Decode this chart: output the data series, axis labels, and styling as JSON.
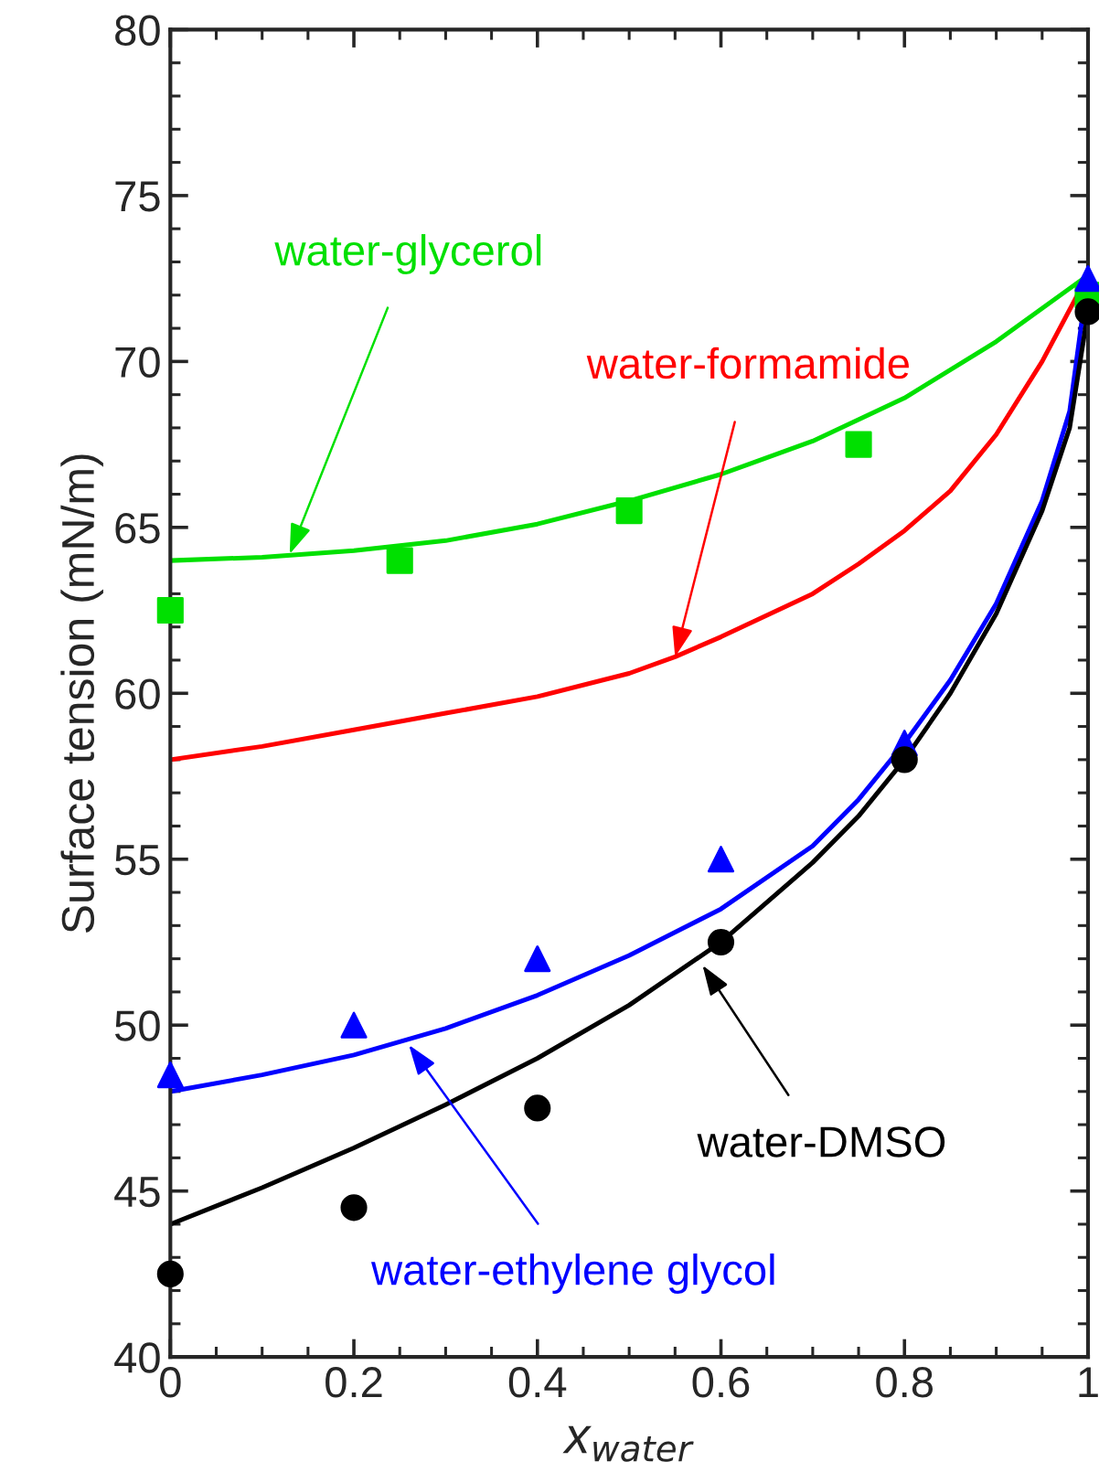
{
  "chart_data": {
    "type": "line",
    "xlabel": "x$_{water}$",
    "ylabel": "Surface tension (mN/m)",
    "xlim": [
      0,
      1
    ],
    "ylim": [
      40,
      80
    ],
    "xticks": [
      0,
      0.2,
      0.4,
      0.6,
      0.8,
      1
    ],
    "yticks": [
      40,
      45,
      50,
      55,
      60,
      65,
      70,
      75,
      80
    ],
    "grid": false,
    "legend": false,
    "series": [
      {
        "type": "line",
        "color": "#00e000",
        "x": [
          0,
          0.1,
          0.2,
          0.3,
          0.4,
          0.5,
          0.6,
          0.7,
          0.8,
          0.9,
          1
        ],
        "values": [
          64,
          64.1,
          64.3,
          64.6,
          65.1,
          65.8,
          66.6,
          67.6,
          68.9,
          70.6,
          72.6
        ]
      },
      {
        "type": "line",
        "color": "#ff0000",
        "x": [
          0,
          0.1,
          0.2,
          0.3,
          0.4,
          0.5,
          0.55,
          0.6,
          0.7,
          0.75,
          0.8,
          0.85,
          0.9,
          0.95,
          1
        ],
        "values": [
          58,
          58.4,
          58.9,
          59.4,
          59.9,
          60.6,
          61.1,
          61.7,
          63,
          63.9,
          64.9,
          66.1,
          67.8,
          70,
          72.6
        ]
      },
      {
        "type": "line",
        "color": "#0000ff",
        "x": [
          0,
          0.1,
          0.2,
          0.3,
          0.4,
          0.5,
          0.6,
          0.7,
          0.75,
          0.8,
          0.85,
          0.9,
          0.95,
          0.98,
          1
        ],
        "values": [
          48,
          48.5,
          49.1,
          49.9,
          50.9,
          52.1,
          53.5,
          55.4,
          56.8,
          58.5,
          60.4,
          62.7,
          65.8,
          68.5,
          72.6
        ]
      },
      {
        "type": "line",
        "color": "#000000",
        "x": [
          0,
          0.1,
          0.2,
          0.3,
          0.4,
          0.5,
          0.6,
          0.7,
          0.75,
          0.8,
          0.85,
          0.9,
          0.95,
          0.98,
          1
        ],
        "values": [
          44,
          45.1,
          46.3,
          47.6,
          49,
          50.6,
          52.5,
          54.9,
          56.3,
          58,
          60,
          62.4,
          65.5,
          68,
          71.5
        ]
      },
      {
        "type": "scatter",
        "marker": "square",
        "color": "#00e000",
        "x": [
          0,
          0.25,
          0.5,
          0.75,
          1
        ],
        "values": [
          62.5,
          64,
          65.5,
          67.5,
          72
        ]
      },
      {
        "type": "scatter",
        "marker": "triangle",
        "color": "#0000ff",
        "x": [
          0,
          0.2,
          0.4,
          0.6,
          0.8,
          1
        ],
        "values": [
          48.5,
          50,
          52,
          55,
          58.5,
          72.5
        ]
      },
      {
        "type": "scatter",
        "marker": "circle",
        "color": "#000000",
        "x": [
          0,
          0.2,
          0.4,
          0.6,
          0.8,
          1
        ],
        "values": [
          42.5,
          44.5,
          47.5,
          52.5,
          58,
          71.5
        ]
      }
    ],
    "annotations": [
      {
        "text": "water-glycerol",
        "x": 0.13,
        "y": 64.2
      },
      {
        "text": "water-formamide",
        "x": 0.55,
        "y": 61.1
      },
      {
        "text": "water-ethylene glycol",
        "x": 0.26,
        "y": 49.4
      },
      {
        "text": "water-DMSO",
        "x": 0.58,
        "y": 51.8
      }
    ]
  }
}
